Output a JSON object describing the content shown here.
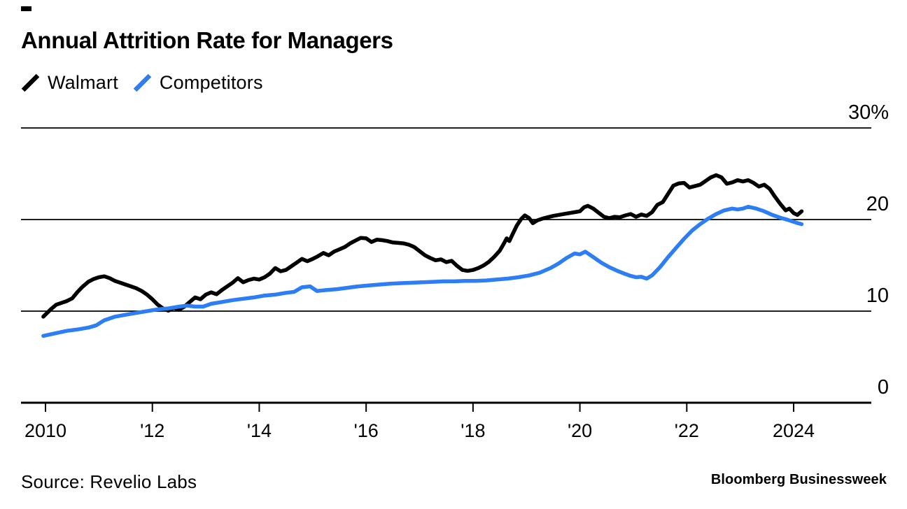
{
  "header": {
    "title": "Annual Attrition Rate for Managers"
  },
  "footer": {
    "source": "Source: Revelio Labs",
    "brand": "Bloomberg Businessweek"
  },
  "colors": {
    "walmart_line": "#000000",
    "competitors_line": "#2d7df5",
    "grid": "#000000",
    "background": "#ffffff"
  },
  "chart_data": {
    "type": "line",
    "title": "Annual Attrition Rate for Managers",
    "grid": "horizontal-on",
    "legend_position": "top-left",
    "x_range_years": [
      2010,
      2024.15
    ],
    "x_axis": {
      "ticks": [
        {
          "year": 2010,
          "label": "2010"
        },
        {
          "year": 2012,
          "label": "'12"
        },
        {
          "year": 2014,
          "label": "'14"
        },
        {
          "year": 2016,
          "label": "'16"
        },
        {
          "year": 2018,
          "label": "'18"
        },
        {
          "year": 2020,
          "label": "'20"
        },
        {
          "year": 2022,
          "label": "'22"
        },
        {
          "year": 2024,
          "label": "2024"
        }
      ]
    },
    "y_axis": {
      "unit": "%",
      "range": [
        0,
        30
      ],
      "ticks": [
        {
          "value": 0,
          "label": "0"
        },
        {
          "value": 10,
          "label": "10"
        },
        {
          "value": 20,
          "label": "20"
        },
        {
          "value": 30,
          "label": "30%"
        }
      ]
    },
    "series": [
      {
        "name": "Walmart",
        "color": "#000000",
        "points": [
          [
            2009.96,
            9.4
          ],
          [
            2010.1,
            10.2
          ],
          [
            2010.2,
            10.7
          ],
          [
            2010.3,
            10.9
          ],
          [
            2010.4,
            11.1
          ],
          [
            2010.5,
            11.4
          ],
          [
            2010.6,
            12.1
          ],
          [
            2010.7,
            12.7
          ],
          [
            2010.8,
            13.2
          ],
          [
            2010.9,
            13.5
          ],
          [
            2011.0,
            13.7
          ],
          [
            2011.1,
            13.8
          ],
          [
            2011.2,
            13.6
          ],
          [
            2011.3,
            13.3
          ],
          [
            2011.4,
            13.1
          ],
          [
            2011.5,
            12.9
          ],
          [
            2011.6,
            12.7
          ],
          [
            2011.7,
            12.5
          ],
          [
            2011.8,
            12.2
          ],
          [
            2011.9,
            11.8
          ],
          [
            2012.0,
            11.3
          ],
          [
            2012.1,
            10.7
          ],
          [
            2012.2,
            10.3
          ],
          [
            2012.3,
            10.05
          ],
          [
            2012.4,
            10.35
          ],
          [
            2012.5,
            10.15
          ],
          [
            2012.6,
            10.5
          ],
          [
            2012.7,
            11.0
          ],
          [
            2012.8,
            11.5
          ],
          [
            2012.9,
            11.3
          ],
          [
            2013.0,
            11.8
          ],
          [
            2013.1,
            12.05
          ],
          [
            2013.2,
            11.85
          ],
          [
            2013.3,
            12.3
          ],
          [
            2013.4,
            12.7
          ],
          [
            2013.5,
            13.1
          ],
          [
            2013.6,
            13.6
          ],
          [
            2013.7,
            13.15
          ],
          [
            2013.8,
            13.4
          ],
          [
            2013.9,
            13.55
          ],
          [
            2014.0,
            13.45
          ],
          [
            2014.1,
            13.7
          ],
          [
            2014.2,
            14.1
          ],
          [
            2014.3,
            14.7
          ],
          [
            2014.4,
            14.35
          ],
          [
            2014.5,
            14.5
          ],
          [
            2014.6,
            14.9
          ],
          [
            2014.7,
            15.3
          ],
          [
            2014.8,
            15.7
          ],
          [
            2014.9,
            15.45
          ],
          [
            2015.0,
            15.7
          ],
          [
            2015.1,
            16.0
          ],
          [
            2015.2,
            16.35
          ],
          [
            2015.3,
            16.1
          ],
          [
            2015.4,
            16.5
          ],
          [
            2015.5,
            16.75
          ],
          [
            2015.6,
            17.0
          ],
          [
            2015.7,
            17.4
          ],
          [
            2015.8,
            17.7
          ],
          [
            2015.9,
            18.0
          ],
          [
            2016.0,
            17.95
          ],
          [
            2016.1,
            17.55
          ],
          [
            2016.2,
            17.8
          ],
          [
            2016.3,
            17.75
          ],
          [
            2016.4,
            17.65
          ],
          [
            2016.5,
            17.5
          ],
          [
            2016.6,
            17.45
          ],
          [
            2016.7,
            17.4
          ],
          [
            2016.8,
            17.25
          ],
          [
            2016.9,
            17.0
          ],
          [
            2017.0,
            16.55
          ],
          [
            2017.1,
            16.1
          ],
          [
            2017.2,
            15.8
          ],
          [
            2017.3,
            15.55
          ],
          [
            2017.4,
            15.65
          ],
          [
            2017.5,
            15.35
          ],
          [
            2017.6,
            15.5
          ],
          [
            2017.7,
            14.95
          ],
          [
            2017.8,
            14.5
          ],
          [
            2017.9,
            14.4
          ],
          [
            2018.0,
            14.5
          ],
          [
            2018.1,
            14.7
          ],
          [
            2018.2,
            15.0
          ],
          [
            2018.3,
            15.4
          ],
          [
            2018.4,
            15.95
          ],
          [
            2018.5,
            16.6
          ],
          [
            2018.57,
            17.3
          ],
          [
            2018.63,
            17.95
          ],
          [
            2018.68,
            17.65
          ],
          [
            2018.75,
            18.5
          ],
          [
            2018.82,
            19.35
          ],
          [
            2018.9,
            20.05
          ],
          [
            2018.97,
            20.45
          ],
          [
            2019.05,
            20.15
          ],
          [
            2019.12,
            19.6
          ],
          [
            2019.2,
            19.9
          ],
          [
            2019.3,
            20.1
          ],
          [
            2019.4,
            20.25
          ],
          [
            2019.5,
            20.4
          ],
          [
            2019.6,
            20.5
          ],
          [
            2019.7,
            20.6
          ],
          [
            2019.8,
            20.7
          ],
          [
            2019.9,
            20.8
          ],
          [
            2020.0,
            20.9
          ],
          [
            2020.08,
            21.35
          ],
          [
            2020.15,
            21.5
          ],
          [
            2020.25,
            21.2
          ],
          [
            2020.35,
            20.75
          ],
          [
            2020.45,
            20.3
          ],
          [
            2020.55,
            20.15
          ],
          [
            2020.65,
            20.3
          ],
          [
            2020.75,
            20.25
          ],
          [
            2020.85,
            20.45
          ],
          [
            2020.95,
            20.6
          ],
          [
            2021.05,
            20.3
          ],
          [
            2021.15,
            20.55
          ],
          [
            2021.25,
            20.4
          ],
          [
            2021.35,
            20.8
          ],
          [
            2021.45,
            21.6
          ],
          [
            2021.55,
            21.9
          ],
          [
            2021.65,
            22.8
          ],
          [
            2021.75,
            23.7
          ],
          [
            2021.85,
            23.95
          ],
          [
            2021.95,
            24.0
          ],
          [
            2022.05,
            23.5
          ],
          [
            2022.15,
            23.65
          ],
          [
            2022.25,
            23.8
          ],
          [
            2022.35,
            24.2
          ],
          [
            2022.45,
            24.6
          ],
          [
            2022.55,
            24.85
          ],
          [
            2022.65,
            24.6
          ],
          [
            2022.75,
            23.9
          ],
          [
            2022.85,
            24.05
          ],
          [
            2022.95,
            24.3
          ],
          [
            2023.05,
            24.15
          ],
          [
            2023.15,
            24.3
          ],
          [
            2023.25,
            24.0
          ],
          [
            2023.35,
            23.6
          ],
          [
            2023.45,
            23.8
          ],
          [
            2023.55,
            23.35
          ],
          [
            2023.65,
            22.5
          ],
          [
            2023.75,
            21.7
          ],
          [
            2023.85,
            21.0
          ],
          [
            2023.92,
            21.2
          ],
          [
            2024.0,
            20.7
          ],
          [
            2024.07,
            20.5
          ],
          [
            2024.15,
            20.9
          ]
        ]
      },
      {
        "name": "Competitors",
        "color": "#2d7df5",
        "points": [
          [
            2009.96,
            7.3
          ],
          [
            2010.2,
            7.6
          ],
          [
            2010.4,
            7.85
          ],
          [
            2010.6,
            8.0
          ],
          [
            2010.8,
            8.2
          ],
          [
            2010.95,
            8.45
          ],
          [
            2011.1,
            9.0
          ],
          [
            2011.3,
            9.4
          ],
          [
            2011.5,
            9.6
          ],
          [
            2011.7,
            9.8
          ],
          [
            2011.9,
            10.0
          ],
          [
            2012.1,
            10.2
          ],
          [
            2012.3,
            10.3
          ],
          [
            2012.5,
            10.5
          ],
          [
            2012.65,
            10.6
          ],
          [
            2012.8,
            10.5
          ],
          [
            2012.95,
            10.5
          ],
          [
            2013.1,
            10.8
          ],
          [
            2013.3,
            11.0
          ],
          [
            2013.5,
            11.2
          ],
          [
            2013.7,
            11.35
          ],
          [
            2013.9,
            11.5
          ],
          [
            2014.1,
            11.7
          ],
          [
            2014.3,
            11.8
          ],
          [
            2014.5,
            12.0
          ],
          [
            2014.65,
            12.1
          ],
          [
            2014.8,
            12.6
          ],
          [
            2014.95,
            12.7
          ],
          [
            2015.08,
            12.2
          ],
          [
            2015.25,
            12.3
          ],
          [
            2015.45,
            12.4
          ],
          [
            2015.65,
            12.55
          ],
          [
            2015.85,
            12.7
          ],
          [
            2016.05,
            12.8
          ],
          [
            2016.25,
            12.9
          ],
          [
            2016.45,
            13.0
          ],
          [
            2016.65,
            13.05
          ],
          [
            2016.85,
            13.1
          ],
          [
            2017.05,
            13.15
          ],
          [
            2017.25,
            13.2
          ],
          [
            2017.45,
            13.25
          ],
          [
            2017.65,
            13.25
          ],
          [
            2017.85,
            13.3
          ],
          [
            2018.05,
            13.3
          ],
          [
            2018.25,
            13.35
          ],
          [
            2018.45,
            13.45
          ],
          [
            2018.65,
            13.55
          ],
          [
            2018.85,
            13.7
          ],
          [
            2019.05,
            13.9
          ],
          [
            2019.25,
            14.2
          ],
          [
            2019.45,
            14.7
          ],
          [
            2019.6,
            15.2
          ],
          [
            2019.75,
            15.8
          ],
          [
            2019.9,
            16.3
          ],
          [
            2020.0,
            16.2
          ],
          [
            2020.1,
            16.5
          ],
          [
            2020.25,
            15.9
          ],
          [
            2020.4,
            15.3
          ],
          [
            2020.55,
            14.8
          ],
          [
            2020.7,
            14.4
          ],
          [
            2020.85,
            14.05
          ],
          [
            2020.95,
            13.85
          ],
          [
            2021.05,
            13.7
          ],
          [
            2021.15,
            13.75
          ],
          [
            2021.25,
            13.55
          ],
          [
            2021.35,
            13.9
          ],
          [
            2021.5,
            14.8
          ],
          [
            2021.65,
            15.9
          ],
          [
            2021.8,
            16.9
          ],
          [
            2021.95,
            17.9
          ],
          [
            2022.1,
            18.8
          ],
          [
            2022.25,
            19.5
          ],
          [
            2022.4,
            20.1
          ],
          [
            2022.55,
            20.6
          ],
          [
            2022.7,
            21.0
          ],
          [
            2022.85,
            21.2
          ],
          [
            2022.95,
            21.1
          ],
          [
            2023.05,
            21.2
          ],
          [
            2023.15,
            21.4
          ],
          [
            2023.3,
            21.2
          ],
          [
            2023.45,
            20.9
          ],
          [
            2023.6,
            20.5
          ],
          [
            2023.75,
            20.2
          ],
          [
            2023.9,
            19.95
          ],
          [
            2024.0,
            19.75
          ],
          [
            2024.08,
            19.6
          ],
          [
            2024.15,
            19.5
          ]
        ]
      }
    ]
  }
}
